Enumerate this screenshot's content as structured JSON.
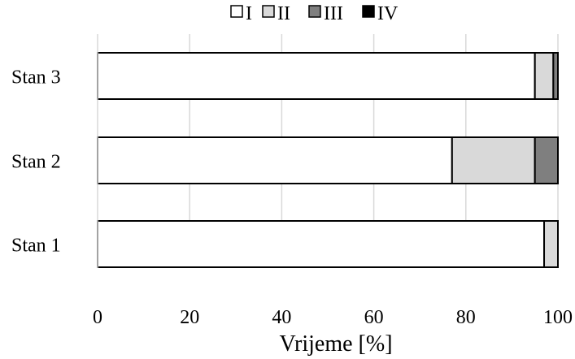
{
  "chart_data": {
    "type": "bar",
    "orientation": "horizontal",
    "stacked": true,
    "categories": [
      "Stan 3",
      "Stan 2",
      "Stan 1"
    ],
    "series": [
      {
        "name": "I",
        "values": [
          95,
          77,
          97
        ],
        "color": "#ffffff"
      },
      {
        "name": "II",
        "values": [
          4,
          18,
          3
        ],
        "color": "#d9d9d9"
      },
      {
        "name": "III",
        "values": [
          1,
          5,
          0
        ],
        "color": "#7f7f7f"
      },
      {
        "name": "IV",
        "values": [
          0,
          0,
          0
        ],
        "color": "#000000"
      }
    ],
    "xlabel": "Vrijeme [%]",
    "xlim": [
      0,
      100
    ],
    "xticks": [
      "0",
      "20",
      "40",
      "60",
      "80",
      "100"
    ],
    "grid": "vertical",
    "legend": "top-center"
  }
}
